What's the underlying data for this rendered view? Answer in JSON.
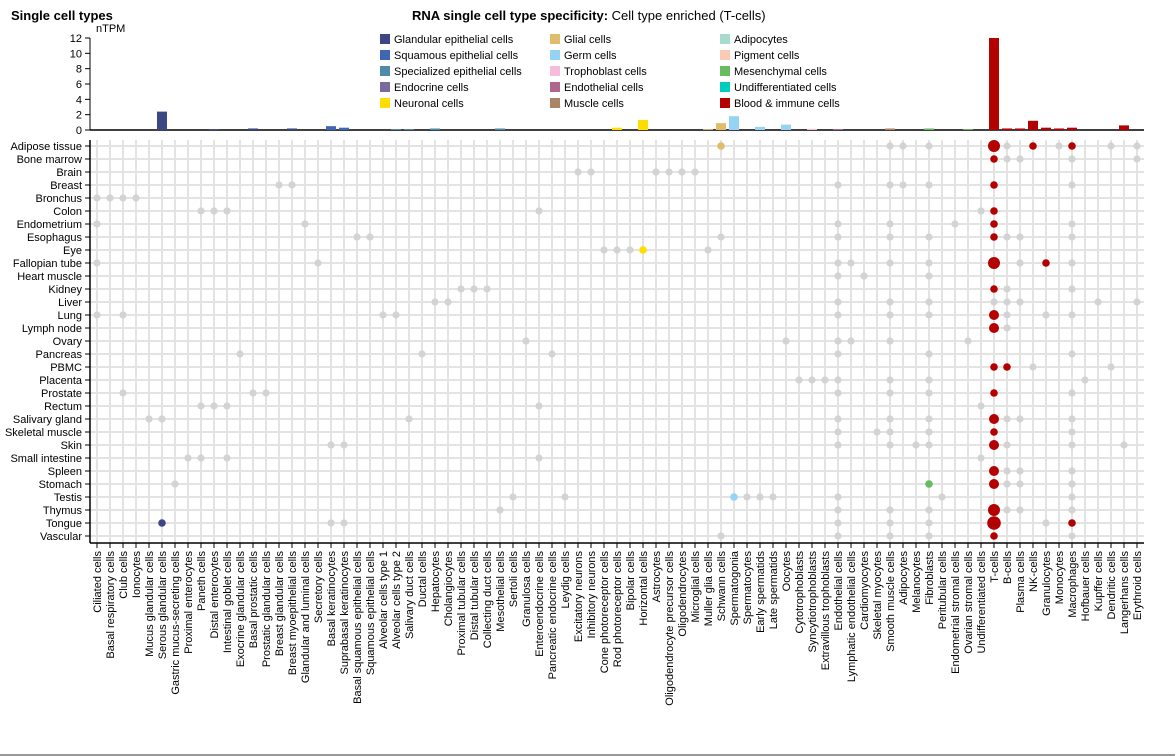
{
  "header": {
    "left_title": "Single cell types",
    "specificity_label": "RNA single cell type specificity:",
    "specificity_value": "Cell type enriched (T-cells)"
  },
  "chart_data": {
    "type": "bar",
    "ylabel": "nTPM",
    "ylim": [
      0,
      12
    ],
    "yticks": [
      0,
      2,
      4,
      6,
      8,
      10,
      12
    ],
    "legend_position": "right",
    "groups": [
      {
        "name": "Glandular epithelial cells",
        "color": "#3d4785"
      },
      {
        "name": "Squamous epithelial cells",
        "color": "#3f67b1"
      },
      {
        "name": "Specialized epithelial cells",
        "color": "#4f8aab"
      },
      {
        "name": "Endocrine cells",
        "color": "#7b6a9e"
      },
      {
        "name": "Neuronal cells",
        "color": "#ffdd00"
      },
      {
        "name": "Glial cells",
        "color": "#e0bd6a"
      },
      {
        "name": "Germ cells",
        "color": "#95d3f5"
      },
      {
        "name": "Trophoblast cells",
        "color": "#f6bcd9"
      },
      {
        "name": "Endothelial cells",
        "color": "#b0678f"
      },
      {
        "name": "Muscle cells",
        "color": "#ac8567"
      },
      {
        "name": "Adipocytes",
        "color": "#a8dacd"
      },
      {
        "name": "Pigment cells",
        "color": "#fccab3"
      },
      {
        "name": "Mesenchymal cells",
        "color": "#67bb61"
      },
      {
        "name": "Undifferentiated cells",
        "color": "#00cdbb"
      },
      {
        "name": "Blood & immune cells",
        "color": "#b30000"
      }
    ],
    "cell_types": [
      {
        "name": "Ciliated cells",
        "group": 2
      },
      {
        "name": "Basal respiratory cells",
        "group": 2
      },
      {
        "name": "Club cells",
        "group": 2
      },
      {
        "name": "Ionocytes",
        "group": 2
      },
      {
        "name": "Mucus glandular cells",
        "group": 0
      },
      {
        "name": "Serous glandular cells",
        "group": 0
      },
      {
        "name": "Gastric mucus-secreting cells",
        "group": 0
      },
      {
        "name": "Proximal enterocytes",
        "group": 0
      },
      {
        "name": "Paneth cells",
        "group": 0
      },
      {
        "name": "Distal enterocytes",
        "group": 0
      },
      {
        "name": "Intestinal goblet cells",
        "group": 0
      },
      {
        "name": "Exocrine glandular cells",
        "group": 0
      },
      {
        "name": "Basal prostatic cells",
        "group": 0
      },
      {
        "name": "Prostatic glandular cells",
        "group": 0
      },
      {
        "name": "Breast glandular cells",
        "group": 0
      },
      {
        "name": "Breast myoepithelial cells",
        "group": 0
      },
      {
        "name": "Glandular and luminal cells",
        "group": 0
      },
      {
        "name": "Secretory cells",
        "group": 0
      },
      {
        "name": "Basal keratinocytes",
        "group": 1
      },
      {
        "name": "Suprabasal keratinocytes",
        "group": 1
      },
      {
        "name": "Basal squamous epithelial cells",
        "group": 1
      },
      {
        "name": "Squamous epithelial cells",
        "group": 1
      },
      {
        "name": "Alveolar cells type 1",
        "group": 2
      },
      {
        "name": "Alveolar cells type 2",
        "group": 2
      },
      {
        "name": "Salivary duct cells",
        "group": 2
      },
      {
        "name": "Ductal cells",
        "group": 2
      },
      {
        "name": "Hepatocytes",
        "group": 2
      },
      {
        "name": "Cholangiocytes",
        "group": 2
      },
      {
        "name": "Proximal tubular cells",
        "group": 2
      },
      {
        "name": "Distal tubular cells",
        "group": 2
      },
      {
        "name": "Collecting duct cells",
        "group": 2
      },
      {
        "name": "Mesothelial cells",
        "group": 2
      },
      {
        "name": "Sertoli cells",
        "group": 2
      },
      {
        "name": "Granulosa cells",
        "group": 2
      },
      {
        "name": "Enteroendocrine cells",
        "group": 3
      },
      {
        "name": "Pancreatic endocrine cells",
        "group": 3
      },
      {
        "name": "Leydig cells",
        "group": 3
      },
      {
        "name": "Excitatory neurons",
        "group": 4
      },
      {
        "name": "Inhibitory neurons",
        "group": 4
      },
      {
        "name": "Cone photoreceptor cells",
        "group": 4
      },
      {
        "name": "Rod photoreceptor cells",
        "group": 4
      },
      {
        "name": "Bipolar cells",
        "group": 4
      },
      {
        "name": "Horizontal cells",
        "group": 4
      },
      {
        "name": "Astrocytes",
        "group": 5
      },
      {
        "name": "Oligodendrocyte precursor cells",
        "group": 5
      },
      {
        "name": "Oligodendrocytes",
        "group": 5
      },
      {
        "name": "Microglial cells",
        "group": 5
      },
      {
        "name": "Muller glia cells",
        "group": 5
      },
      {
        "name": "Schwann cells",
        "group": 5
      },
      {
        "name": "Spermatogonia",
        "group": 6
      },
      {
        "name": "Spermatocytes",
        "group": 6
      },
      {
        "name": "Early spermatids",
        "group": 6
      },
      {
        "name": "Late spermatids",
        "group": 6
      },
      {
        "name": "Oocytes",
        "group": 6
      },
      {
        "name": "Cytotrophoblasts",
        "group": 7
      },
      {
        "name": "Syncytiotrophoblasts",
        "group": 7
      },
      {
        "name": "Extravillous trophoblasts",
        "group": 7
      },
      {
        "name": "Endothelial cells",
        "group": 8
      },
      {
        "name": "Lymphatic endothelial cells",
        "group": 8
      },
      {
        "name": "Cardiomyocytes",
        "group": 9
      },
      {
        "name": "Skeletal myocytes",
        "group": 9
      },
      {
        "name": "Smooth muscle cells",
        "group": 9
      },
      {
        "name": "Adipocytes",
        "group": 10
      },
      {
        "name": "Melanocytes",
        "group": 11
      },
      {
        "name": "Fibroblasts",
        "group": 12
      },
      {
        "name": "Peritubular cells",
        "group": 12
      },
      {
        "name": "Endometrial stromal cells",
        "group": 12
      },
      {
        "name": "Ovarian stromal cells",
        "group": 12
      },
      {
        "name": "Undifferentiated cells",
        "group": 13
      },
      {
        "name": "T-cells",
        "group": 14
      },
      {
        "name": "B-cells",
        "group": 14
      },
      {
        "name": "Plasma cells",
        "group": 14
      },
      {
        "name": "NK-cells",
        "group": 14
      },
      {
        "name": "Granulocytes",
        "group": 14
      },
      {
        "name": "Monocytes",
        "group": 14
      },
      {
        "name": "Macrophages",
        "group": 14
      },
      {
        "name": "Hofbauer cells",
        "group": 14
      },
      {
        "name": "Kupffer cells",
        "group": 14
      },
      {
        "name": "Dendritic cells",
        "group": 14
      },
      {
        "name": "Langerhans cells",
        "group": 14
      },
      {
        "name": "Erythroid cells",
        "group": 14
      }
    ],
    "bar_values": {
      "5": 2.4,
      "9": 0.1,
      "12": 0.2,
      "15": 0.2,
      "18": 0.5,
      "19": 0.3,
      "23": 0.1,
      "24": 0.1,
      "26": 0.2,
      "31": 0.2,
      "40": 0.3,
      "42": 1.3,
      "47": 0.1,
      "48": 0.9,
      "49": 1.8,
      "51": 0.4,
      "53": 0.7,
      "55": 0.15,
      "57": 0.1,
      "61": 0.2,
      "64": 0.2,
      "67": 0.1,
      "69": 12,
      "70": 0.2,
      "71": 0.2,
      "72": 1.2,
      "73": 0.3,
      "74": 0.2,
      "75": 0.3,
      "79": 0.6
    },
    "tissues": [
      {
        "name": "Adipose tissue",
        "grey": [
          61,
          62,
          64,
          70,
          74,
          78,
          80
        ],
        "enriched": [
          [
            48,
            1
          ],
          [
            69,
            3
          ],
          [
            72,
            1
          ],
          [
            75,
            1
          ]
        ]
      },
      {
        "name": "Bone marrow",
        "grey": [
          70,
          71,
          75,
          80
        ],
        "enriched": [
          [
            69,
            1
          ]
        ]
      },
      {
        "name": "Brain",
        "grey": [
          37,
          38,
          43,
          44,
          45,
          46
        ],
        "enriched": []
      },
      {
        "name": "Breast",
        "grey": [
          14,
          15,
          57,
          61,
          62,
          64,
          75
        ],
        "enriched": [
          [
            69,
            1
          ]
        ]
      },
      {
        "name": "Bronchus",
        "grey": [
          0,
          1,
          2,
          3
        ],
        "enriched": []
      },
      {
        "name": "Colon",
        "grey": [
          8,
          9,
          10,
          34,
          68
        ],
        "enriched": [
          [
            69,
            1
          ]
        ]
      },
      {
        "name": "Endometrium",
        "grey": [
          0,
          16,
          57,
          61,
          66,
          75
        ],
        "enriched": [
          [
            69,
            1
          ]
        ]
      },
      {
        "name": "Esophagus",
        "grey": [
          20,
          21,
          48,
          57,
          61,
          64,
          70,
          71,
          75
        ],
        "enriched": [
          [
            69,
            1
          ]
        ]
      },
      {
        "name": "Eye",
        "grey": [
          39,
          40,
          41,
          47
        ],
        "enriched": [
          [
            42,
            1
          ]
        ]
      },
      {
        "name": "Fallopian tube",
        "grey": [
          0,
          17,
          57,
          58,
          61,
          64,
          71,
          75
        ],
        "enriched": [
          [
            69,
            3
          ],
          [
            73,
            1
          ]
        ]
      },
      {
        "name": "Heart muscle",
        "grey": [
          57,
          59,
          64
        ],
        "enriched": []
      },
      {
        "name": "Kidney",
        "grey": [
          28,
          29,
          30,
          70,
          75
        ],
        "enriched": [
          [
            69,
            1
          ]
        ]
      },
      {
        "name": "Liver",
        "grey": [
          26,
          27,
          57,
          61,
          64,
          69,
          70,
          71,
          77,
          80
        ],
        "enriched": []
      },
      {
        "name": "Lung",
        "grey": [
          0,
          2,
          22,
          23,
          57,
          61,
          64,
          70,
          73,
          75
        ],
        "enriched": [
          [
            69,
            2
          ]
        ]
      },
      {
        "name": "Lymph node",
        "grey": [
          70
        ],
        "enriched": [
          [
            69,
            2
          ]
        ]
      },
      {
        "name": "Ovary",
        "grey": [
          33,
          53,
          57,
          58,
          61,
          67
        ],
        "enriched": []
      },
      {
        "name": "Pancreas",
        "grey": [
          11,
          25,
          35,
          57,
          64,
          75
        ],
        "enriched": []
      },
      {
        "name": "PBMC",
        "grey": [
          72,
          78
        ],
        "enriched": [
          [
            69,
            1
          ],
          [
            70,
            1
          ]
        ]
      },
      {
        "name": "Placenta",
        "grey": [
          54,
          55,
          56,
          57,
          61,
          64,
          76
        ],
        "enriched": []
      },
      {
        "name": "Prostate",
        "grey": [
          2,
          12,
          13,
          57,
          61,
          64,
          75
        ],
        "enriched": [
          [
            69,
            1
          ]
        ]
      },
      {
        "name": "Rectum",
        "grey": [
          8,
          9,
          10,
          34,
          68
        ],
        "enriched": []
      },
      {
        "name": "Salivary gland",
        "grey": [
          4,
          5,
          24,
          57,
          61,
          64,
          70,
          71,
          75
        ],
        "enriched": [
          [
            69,
            2
          ]
        ]
      },
      {
        "name": "Skeletal muscle",
        "grey": [
          57,
          60,
          61,
          64,
          75
        ],
        "enriched": [
          [
            69,
            1
          ]
        ]
      },
      {
        "name": "Skin",
        "grey": [
          18,
          19,
          57,
          61,
          63,
          64,
          70,
          75,
          79
        ],
        "enriched": [
          [
            69,
            2
          ]
        ]
      },
      {
        "name": "Small intestine",
        "grey": [
          7,
          8,
          10,
          34,
          68
        ],
        "enriched": []
      },
      {
        "name": "Spleen",
        "grey": [
          70,
          71,
          75
        ],
        "enriched": [
          [
            69,
            2
          ]
        ]
      },
      {
        "name": "Stomach",
        "grey": [
          6,
          70,
          71,
          75
        ],
        "enriched": [
          [
            64,
            1
          ],
          [
            69,
            2
          ]
        ]
      },
      {
        "name": "Testis",
        "grey": [
          32,
          36,
          50,
          51,
          52,
          57,
          65,
          75
        ],
        "enriched": [
          [
            49,
            1
          ]
        ]
      },
      {
        "name": "Thymus",
        "grey": [
          31,
          57,
          61,
          64,
          70,
          71,
          75
        ],
        "enriched": [
          [
            69,
            3
          ]
        ]
      },
      {
        "name": "Tongue",
        "grey": [
          18,
          19,
          57,
          61,
          64,
          73
        ],
        "enriched": [
          [
            5,
            1
          ],
          [
            69,
            4
          ],
          [
            75,
            1
          ]
        ]
      },
      {
        "name": "Vascular",
        "grey": [
          48,
          57,
          61,
          64,
          75
        ],
        "enriched": [
          [
            69,
            1
          ]
        ]
      }
    ],
    "grid": true,
    "dot_grey_color": "#d3d3d3"
  }
}
